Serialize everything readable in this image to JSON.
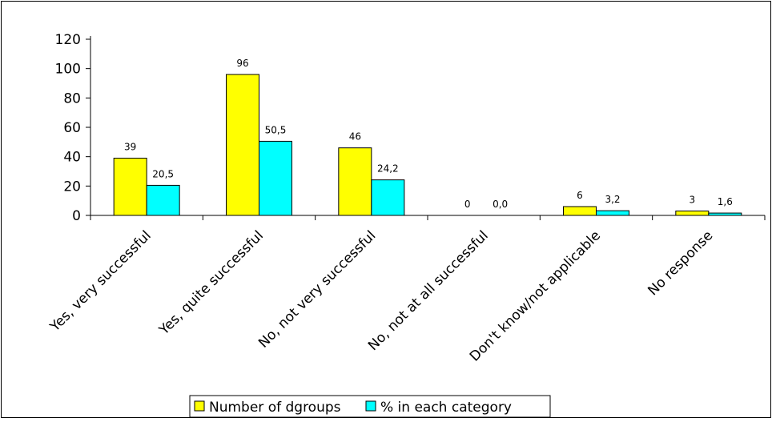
{
  "colors": {
    "background": "#ffffff",
    "series_1": "#ffff00",
    "series_2": "#00ffff",
    "outline": "#000000"
  },
  "chart_data": {
    "type": "bar",
    "categories": [
      "Yes, very successful",
      "Yes, quite successful",
      "No, not very successful",
      "No, not at all successful",
      "Don't know/not applicable",
      "No response"
    ],
    "series": [
      {
        "name": "Number of dgroups",
        "values": [
          39,
          96,
          46,
          0,
          6,
          3
        ],
        "labels": [
          "39",
          "96",
          "46",
          "0",
          "6",
          "3"
        ]
      },
      {
        "name": "% in each category",
        "values": [
          20.5,
          50.5,
          24.2,
          0.0,
          3.2,
          1.6
        ],
        "labels": [
          "20,5",
          "50,5",
          "24,2",
          "0,0",
          "3,2",
          "1,6"
        ]
      }
    ],
    "ylim": [
      0,
      120
    ],
    "yticks": [
      "0",
      "20",
      "40",
      "60",
      "80",
      "100",
      "120"
    ],
    "grid": false,
    "legend_position": "bottom"
  }
}
